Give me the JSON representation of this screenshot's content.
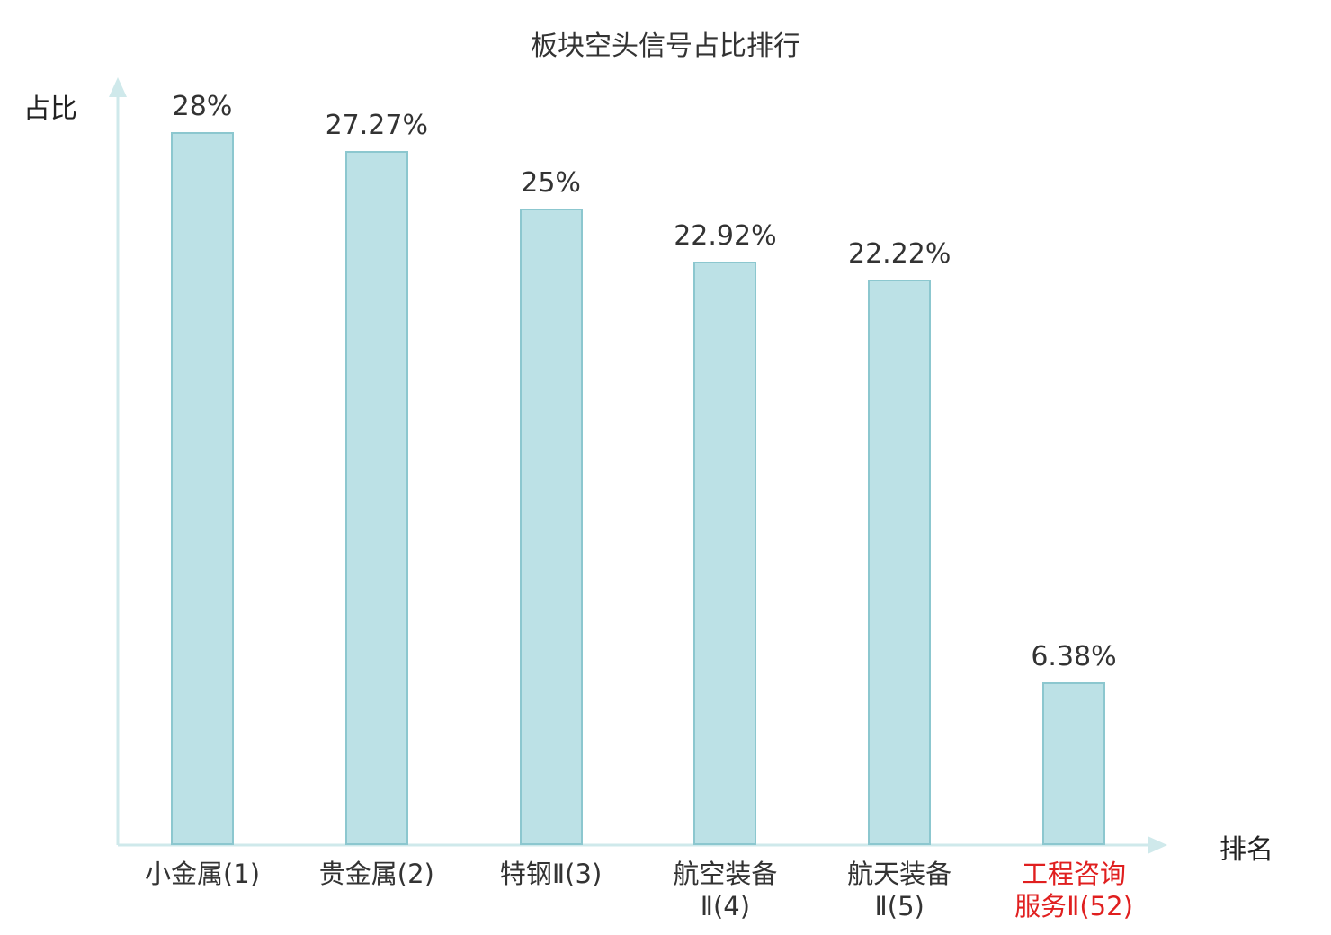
{
  "chart_data": {
    "type": "bar",
    "title": "板块空头信号占比排行",
    "xlabel": "排名",
    "ylabel": "占比",
    "categories": [
      "小金属(1)",
      "贵金属(2)",
      "特钢Ⅱ(3)",
      "航空装备Ⅱ(4)",
      "航天装备Ⅱ(5)",
      "工程咨询服务Ⅱ(52)"
    ],
    "category_lines": [
      [
        "小金属(1)"
      ],
      [
        "贵金属(2)"
      ],
      [
        "特钢Ⅱ(3)"
      ],
      [
        "航空装备",
        "Ⅱ(4)"
      ],
      [
        "航天装备",
        "Ⅱ(5)"
      ],
      [
        "工程咨询",
        "服务Ⅱ(52)"
      ]
    ],
    "values": [
      28,
      27.27,
      25,
      22.92,
      22.22,
      6.38
    ],
    "value_labels": [
      "28%",
      "27.27%",
      "25%",
      "22.92%",
      "22.22%",
      "6.38%"
    ],
    "highlight_index": 5,
    "highlight_color": "#e01f1f",
    "bar_fill": "#bce1e6",
    "bar_border": "#8cc7cf",
    "axis_color": "#cfe9eb",
    "text_color": "#333333",
    "ylim": [
      0,
      30
    ],
    "grid": false,
    "legend": "none"
  }
}
